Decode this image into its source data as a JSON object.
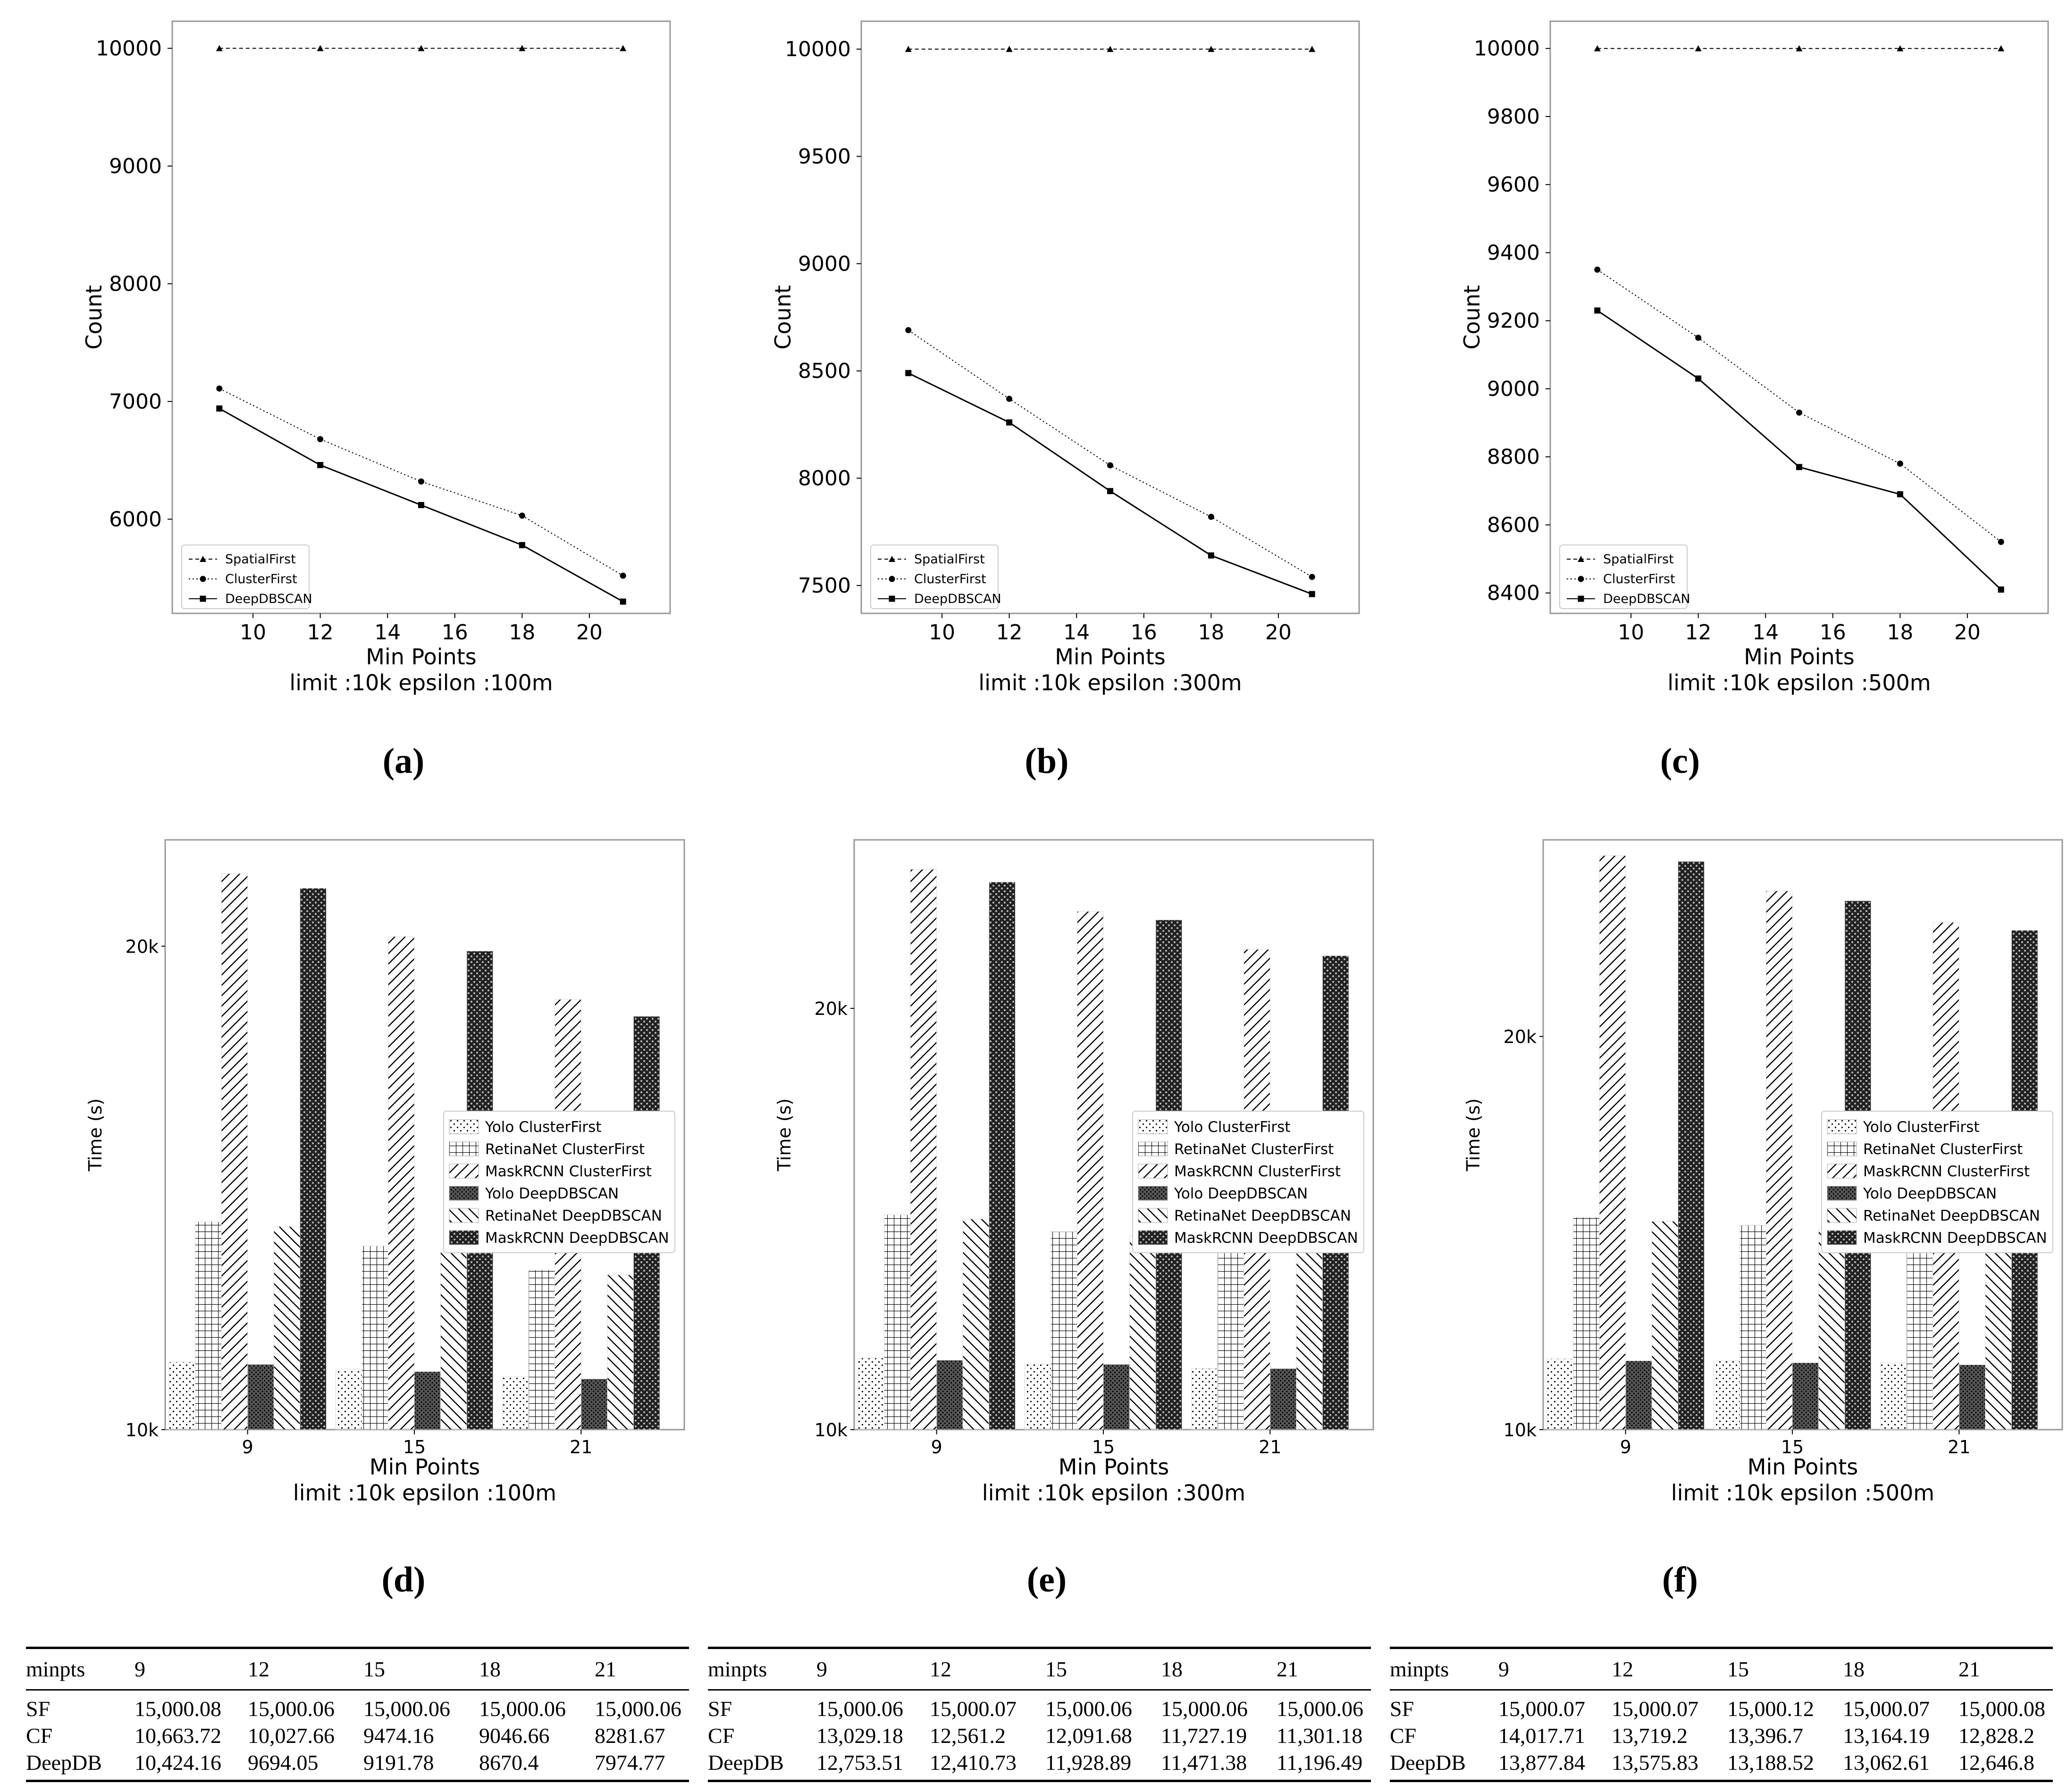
{
  "captions": [
    "(a)",
    "(b)",
    "(c)",
    "(d)",
    "(e)",
    "(f)"
  ],
  "colors": {
    "line": "#000000",
    "frame": "#999999",
    "background": "#ffffff"
  },
  "chart_data": [
    {
      "type": "line",
      "xlabel": "Min Points",
      "subtitle": "limit :10k epsilon :100m",
      "ylabel": "Count",
      "x": [
        9,
        12,
        15,
        18,
        21
      ],
      "xlim": [
        7.6,
        22.4
      ],
      "ylim": [
        5200,
        10230
      ],
      "xticks": [
        10,
        12,
        14,
        16,
        18,
        20
      ],
      "yticks": [
        6000,
        7000,
        8000,
        9000,
        10000
      ],
      "legend": "lower-left",
      "series": [
        {
          "name": "SpatialFirst",
          "marker": "triangle",
          "values": [
            10000,
            10000,
            10000,
            10000,
            10000
          ]
        },
        {
          "name": "ClusterFirst",
          "marker": "circle",
          "values": [
            7110,
            6680,
            6320,
            6030,
            5520
          ]
        },
        {
          "name": "DeepDBSCAN",
          "marker": "square",
          "values": [
            6940,
            6460,
            6120,
            5780,
            5300
          ]
        }
      ]
    },
    {
      "type": "line",
      "xlabel": "Min Points",
      "subtitle": "limit :10k epsilon :300m",
      "ylabel": "Count",
      "x": [
        9,
        12,
        15,
        18,
        21
      ],
      "xlim": [
        7.6,
        22.4
      ],
      "ylim": [
        7370,
        10130
      ],
      "xticks": [
        10,
        12,
        14,
        16,
        18,
        20
      ],
      "yticks": [
        7500,
        8000,
        8500,
        9000,
        9500,
        10000
      ],
      "legend": "lower-left",
      "series": [
        {
          "name": "SpatialFirst",
          "marker": "triangle",
          "values": [
            10000,
            10000,
            10000,
            10000,
            10000
          ]
        },
        {
          "name": "ClusterFirst",
          "marker": "circle",
          "values": [
            8690,
            8370,
            8060,
            7820,
            7540
          ]
        },
        {
          "name": "DeepDBSCAN",
          "marker": "square",
          "values": [
            8490,
            8260,
            7940,
            7640,
            7460
          ]
        }
      ]
    },
    {
      "type": "line",
      "xlabel": "Min Points",
      "subtitle": "limit :10k epsilon :500m",
      "ylabel": "Count",
      "x": [
        9,
        12,
        15,
        18,
        21
      ],
      "xlim": [
        7.6,
        22.4
      ],
      "ylim": [
        8340,
        10080
      ],
      "xticks": [
        10,
        12,
        14,
        16,
        18,
        20
      ],
      "yticks": [
        8400,
        8600,
        8800,
        9000,
        9200,
        9400,
        9600,
        9800,
        10000
      ],
      "legend": "lower-left",
      "series": [
        {
          "name": "SpatialFirst",
          "marker": "triangle",
          "values": [
            10000,
            10000,
            10000,
            10000,
            10000
          ]
        },
        {
          "name": "ClusterFirst",
          "marker": "circle",
          "values": [
            9350,
            9150,
            8930,
            8780,
            8550
          ]
        },
        {
          "name": "DeepDBSCAN",
          "marker": "square",
          "values": [
            9230,
            9030,
            8770,
            8690,
            8410
          ]
        }
      ]
    },
    {
      "type": "bar",
      "xlabel": "Min Points",
      "subtitle": "limit :10k epsilon :100m",
      "ylabel": "Time (s)",
      "categories": [
        "9",
        "15",
        "21"
      ],
      "ylim": [
        10000,
        22200
      ],
      "yticks": [
        {
          "value": 10000,
          "label": "10k"
        },
        {
          "value": 20000,
          "label": "20k"
        }
      ],
      "legend": "right",
      "series": [
        {
          "name": "Yolo ClusterFirst",
          "pattern": "dots",
          "values": [
            11400,
            11250,
            11100
          ]
        },
        {
          "name": "RetinaNet ClusterFirst",
          "pattern": "grid",
          "values": [
            14300,
            13800,
            13300
          ]
        },
        {
          "name": "MaskRCNN ClusterFirst",
          "pattern": "diag",
          "values": [
            21500,
            20200,
            18900
          ]
        },
        {
          "name": "Yolo DeepDBSCAN",
          "pattern": "dense",
          "values": [
            11350,
            11200,
            11050
          ]
        },
        {
          "name": "RetinaNet DeepDBSCAN",
          "pattern": "antidiag",
          "values": [
            14200,
            13700,
            13200
          ]
        },
        {
          "name": "MaskRCNN DeepDBSCAN",
          "pattern": "hex",
          "values": [
            21200,
            19900,
            18550
          ]
        }
      ]
    },
    {
      "type": "bar",
      "xlabel": "Min Points",
      "subtitle": "limit :10k epsilon :300m",
      "ylabel": "Time (s)",
      "categories": [
        "9",
        "15",
        "21"
      ],
      "ylim": [
        10000,
        24000
      ],
      "yticks": [
        {
          "value": 10000,
          "label": "10k"
        },
        {
          "value": 20000,
          "label": "20k"
        }
      ],
      "legend": "right",
      "series": [
        {
          "name": "Yolo ClusterFirst",
          "pattern": "dots",
          "values": [
            11700,
            11550,
            11450
          ]
        },
        {
          "name": "RetinaNet ClusterFirst",
          "pattern": "grid",
          "values": [
            15100,
            14700,
            14400
          ]
        },
        {
          "name": "MaskRCNN ClusterFirst",
          "pattern": "diag",
          "values": [
            23300,
            22300,
            21400
          ]
        },
        {
          "name": "Yolo DeepDBSCAN",
          "pattern": "dense",
          "values": [
            11650,
            11550,
            11450
          ]
        },
        {
          "name": "RetinaNet DeepDBSCAN",
          "pattern": "antidiag",
          "values": [
            15000,
            14600,
            14300
          ]
        },
        {
          "name": "MaskRCNN DeepDBSCAN",
          "pattern": "hex",
          "values": [
            23000,
            22100,
            21250
          ]
        }
      ]
    },
    {
      "type": "bar",
      "xlabel": "Min Points",
      "subtitle": "limit :10k epsilon :500m",
      "ylabel": "Time (s)",
      "categories": [
        "9",
        "15",
        "21"
      ],
      "ylim": [
        10000,
        25000
      ],
      "yticks": [
        {
          "value": 10000,
          "label": "10k"
        },
        {
          "value": 20000,
          "label": "20k"
        }
      ],
      "legend": "right",
      "series": [
        {
          "name": "Yolo ClusterFirst",
          "pattern": "dots",
          "values": [
            11800,
            11750,
            11700
          ]
        },
        {
          "name": "RetinaNet ClusterFirst",
          "pattern": "grid",
          "values": [
            15400,
            15200,
            15000
          ]
        },
        {
          "name": "MaskRCNN ClusterFirst",
          "pattern": "diag",
          "values": [
            24600,
            23700,
            22900
          ]
        },
        {
          "name": "Yolo DeepDBSCAN",
          "pattern": "dense",
          "values": [
            11750,
            11700,
            11650
          ]
        },
        {
          "name": "RetinaNet DeepDBSCAN",
          "pattern": "antidiag",
          "values": [
            15300,
            15100,
            14900
          ]
        },
        {
          "name": "MaskRCNN DeepDBSCAN",
          "pattern": "hex",
          "values": [
            24450,
            23450,
            22700
          ]
        }
      ]
    }
  ],
  "tables": [
    {
      "header": [
        "minpts",
        "9",
        "12",
        "15",
        "18",
        "21"
      ],
      "rows": [
        [
          "SF",
          "15,000.08",
          "15,000.06",
          "15,000.06",
          "15,000.06",
          "15,000.06"
        ],
        [
          "CF",
          "10,663.72",
          "10,027.66",
          "9474.16",
          "9046.66",
          "8281.67"
        ],
        [
          "DeepDB",
          "10,424.16",
          "9694.05",
          "9191.78",
          "8670.4",
          "7974.77"
        ]
      ]
    },
    {
      "header": [
        "minpts",
        "9",
        "12",
        "15",
        "18",
        "21"
      ],
      "rows": [
        [
          "SF",
          "15,000.06",
          "15,000.07",
          "15,000.06",
          "15,000.06",
          "15,000.06"
        ],
        [
          "CF",
          "13,029.18",
          "12,561.2",
          "12,091.68",
          "11,727.19",
          "11,301.18"
        ],
        [
          "DeepDB",
          "12,753.51",
          "12,410.73",
          "11,928.89",
          "11,471.38",
          "11,196.49"
        ]
      ]
    },
    {
      "header": [
        "minpts",
        "9",
        "12",
        "15",
        "18",
        "21"
      ],
      "rows": [
        [
          "SF",
          "15,000.07",
          "15,000.07",
          "15,000.12",
          "15,000.07",
          "15,000.08"
        ],
        [
          "CF",
          "14,017.71",
          "13,719.2",
          "13,396.7",
          "13,164.19",
          "12,828.2"
        ],
        [
          "DeepDB",
          "13,877.84",
          "13,575.83",
          "13,188.52",
          "13,062.61",
          "12,646.8"
        ]
      ]
    }
  ]
}
